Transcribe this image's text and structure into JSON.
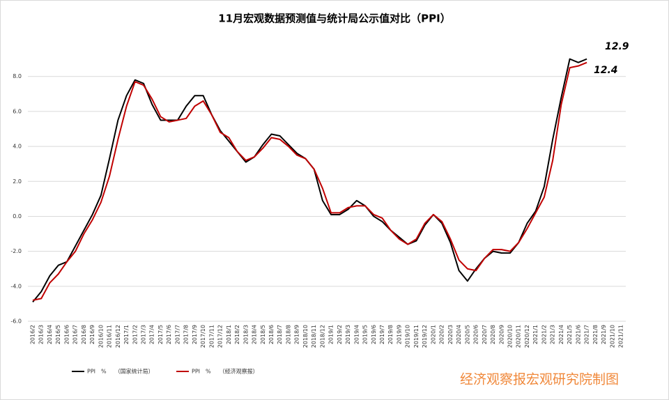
{
  "chart_data": {
    "type": "line",
    "title": "11月宏观数据预测值与统计局公示值对比（PPI）",
    "categories": [
      "2016/2",
      "2016/3",
      "2016/4",
      "2016/5",
      "2016/6",
      "2016/7",
      "2016/8",
      "2016/9",
      "2016/10",
      "2016/11",
      "2016/12",
      "2017/1",
      "2017/2",
      "2017/3",
      "2017/4",
      "2017/5",
      "2017/6",
      "2017/7",
      "2017/8",
      "2017/9",
      "2017/10",
      "2017/11",
      "2017/12",
      "2018/1",
      "2018/2",
      "2018/3",
      "2018/4",
      "2018/5",
      "2018/6",
      "2018/7",
      "2018/8",
      "2018/9",
      "2018/10",
      "2018/11",
      "2018/12",
      "2019/1",
      "2019/2",
      "2019/3",
      "2019/4",
      "2019/5",
      "2019/6",
      "2019/7",
      "2019/8",
      "2019/9",
      "2019/10",
      "2019/11",
      "2019/12",
      "2020/1",
      "2020/2",
      "2020/3",
      "2020/4",
      "2020/5",
      "2020/6",
      "2020/7",
      "2020/8",
      "2020/9",
      "2020/10",
      "2020/11",
      "2020/12",
      "2021/1",
      "2021/2",
      "2021/3",
      "2021/4",
      "2021/5",
      "2021/6",
      "2021/7",
      "2021/8",
      "2021/9",
      "2021/10",
      "2021/11"
    ],
    "series": [
      {
        "name": "PPI　%　　（国家统计局）",
        "color": "#000000",
        "values": [
          -4.9,
          -4.3,
          -3.4,
          -2.8,
          -2.6,
          -1.7,
          -0.8,
          0.1,
          1.2,
          3.3,
          5.5,
          6.9,
          7.8,
          7.6,
          6.4,
          5.5,
          5.5,
          5.5,
          6.3,
          6.9,
          6.9,
          5.8,
          4.9,
          4.3,
          3.7,
          3.1,
          3.4,
          4.1,
          4.7,
          4.6,
          4.1,
          3.6,
          3.3,
          2.7,
          0.9,
          0.1,
          0.1,
          0.4,
          0.9,
          0.6,
          0.0,
          -0.3,
          -0.8,
          -1.2,
          -1.6,
          -1.4,
          -0.5,
          0.1,
          -0.4,
          -1.5,
          -3.1,
          -3.7,
          -3.0,
          -2.4,
          -2.0,
          -2.1,
          -2.1,
          -1.5,
          -0.4,
          0.3,
          1.7,
          4.4,
          6.8,
          9.0,
          8.8,
          9.0,
          null,
          null,
          null,
          null
        ]
      },
      {
        "name": "PPI　%　　（经济观察报）",
        "color": "#c00000",
        "values": [
          -4.8,
          -4.7,
          -3.8,
          -3.3,
          -2.6,
          -2.0,
          -1.0,
          -0.2,
          0.8,
          2.3,
          4.4,
          6.3,
          7.7,
          7.5,
          6.7,
          5.7,
          5.4,
          5.5,
          5.6,
          6.3,
          6.6,
          5.8,
          4.8,
          4.5,
          3.7,
          3.2,
          3.4,
          3.9,
          4.5,
          4.4,
          4.0,
          3.5,
          3.3,
          2.7,
          1.6,
          0.2,
          0.2,
          0.5,
          0.6,
          0.6,
          0.1,
          -0.1,
          -0.8,
          -1.3,
          -1.6,
          -1.3,
          -0.4,
          0.1,
          -0.3,
          -1.3,
          -2.5,
          -3.0,
          -3.1,
          -2.4,
          -1.9,
          -1.9,
          -2.0,
          -1.5,
          -0.7,
          0.2,
          1.1,
          3.2,
          6.4,
          8.5,
          8.6,
          8.8,
          null,
          null,
          null,
          null
        ]
      }
    ],
    "ylim": [
      -6,
      9.2
    ],
    "yticks": [
      {
        "value": -6,
        "label": "-6.0"
      },
      {
        "value": -4,
        "label": "-4.0"
      },
      {
        "value": -2,
        "label": "-2.0"
      },
      {
        "value": 0,
        "label": "0.0"
      },
      {
        "value": 2,
        "label": "2.0"
      },
      {
        "value": 4,
        "label": "4.0"
      },
      {
        "value": 6,
        "label": "6.0"
      },
      {
        "value": 8,
        "label": "8.0"
      }
    ],
    "grid": true,
    "annotations": [
      "12.9",
      "12.4"
    ],
    "source": "经济观察报宏观研究院制图"
  }
}
